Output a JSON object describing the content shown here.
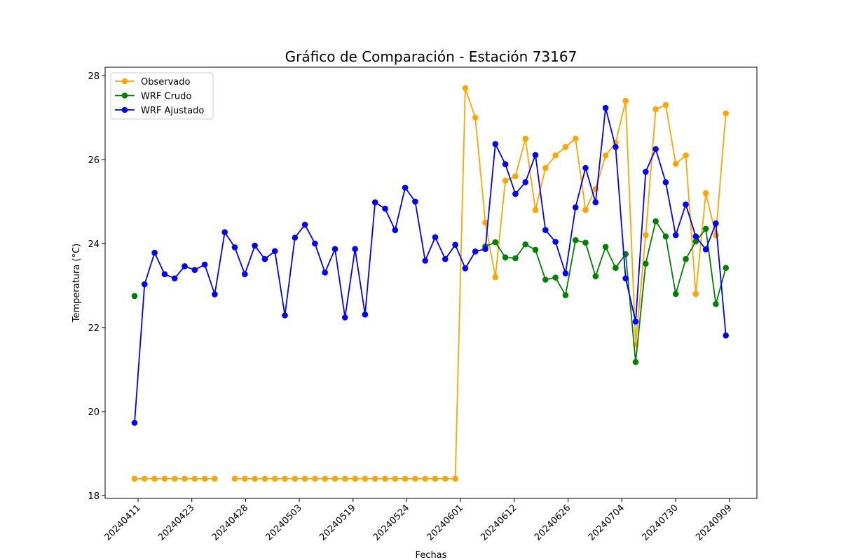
{
  "chart_data": {
    "type": "line",
    "title": "Gráfico de Comparación - Estación 73167",
    "xlabel": "Fechas",
    "ylabel": "Temperatura (°C)",
    "ylim": [
      17.93,
      28.2
    ],
    "yticks": [
      18,
      20,
      22,
      24,
      26,
      28
    ],
    "xtick_labels": [
      "20240411",
      "20240423",
      "20240428",
      "20240503",
      "20240519",
      "20240524",
      "20240601",
      "20240612",
      "20240626",
      "20240704",
      "20240730",
      "20240909"
    ],
    "grid": false,
    "legend_position": "top-left",
    "series": [
      {
        "name": "Observado",
        "color": "#ffa500",
        "values": [
          18.4,
          18.4,
          18.4,
          18.4,
          18.4,
          18.4,
          18.4,
          18.4,
          18.4,
          null,
          18.4,
          18.4,
          18.4,
          18.4,
          18.4,
          18.4,
          18.4,
          18.4,
          18.4,
          18.4,
          18.4,
          18.4,
          18.4,
          18.4,
          18.4,
          18.4,
          18.4,
          18.4,
          18.4,
          18.4,
          18.4,
          18.4,
          18.4,
          27.7,
          27.0,
          24.5,
          23.2,
          25.5,
          25.6,
          26.5,
          24.8,
          25.8,
          26.1,
          26.3,
          26.5,
          24.8,
          25.3,
          26.1,
          26.4,
          27.4,
          21.6,
          24.2,
          27.2,
          27.3,
          25.9,
          26.1,
          22.8,
          25.2,
          24.2,
          27.1
        ]
      },
      {
        "name": "WRF Crudo",
        "color": "#008000",
        "values": [
          22.75,
          null,
          null,
          null,
          null,
          null,
          null,
          null,
          null,
          null,
          null,
          null,
          null,
          null,
          null,
          null,
          null,
          null,
          null,
          null,
          null,
          null,
          null,
          null,
          null,
          null,
          null,
          null,
          null,
          null,
          null,
          null,
          null,
          null,
          null,
          23.93,
          24.03,
          23.67,
          23.65,
          23.98,
          23.85,
          23.14,
          23.19,
          22.77,
          24.08,
          24.02,
          23.22,
          23.92,
          23.42,
          23.75,
          21.18,
          23.52,
          24.53,
          24.17,
          22.8,
          23.63,
          24.05,
          24.35,
          22.56,
          23.42
        ]
      },
      {
        "name": "WRF Ajustado",
        "color": "#0000ff",
        "values": [
          19.73,
          23.03,
          23.78,
          23.27,
          23.17,
          23.46,
          23.37,
          23.5,
          22.79,
          24.27,
          23.91,
          23.27,
          23.95,
          23.63,
          23.82,
          22.29,
          24.14,
          24.45,
          24.0,
          23.31,
          23.87,
          22.24,
          23.87,
          22.31,
          24.98,
          24.83,
          24.32,
          25.33,
          25.0,
          23.59,
          24.15,
          23.63,
          23.97,
          23.41,
          23.81,
          23.87,
          26.37,
          25.89,
          25.18,
          25.46,
          26.11,
          24.32,
          24.04,
          23.29,
          24.86,
          25.8,
          24.98,
          27.23,
          26.3,
          23.17,
          22.14,
          25.71,
          26.25,
          25.46,
          24.2,
          24.93,
          24.17,
          23.86,
          24.48,
          21.81
        ]
      }
    ]
  }
}
